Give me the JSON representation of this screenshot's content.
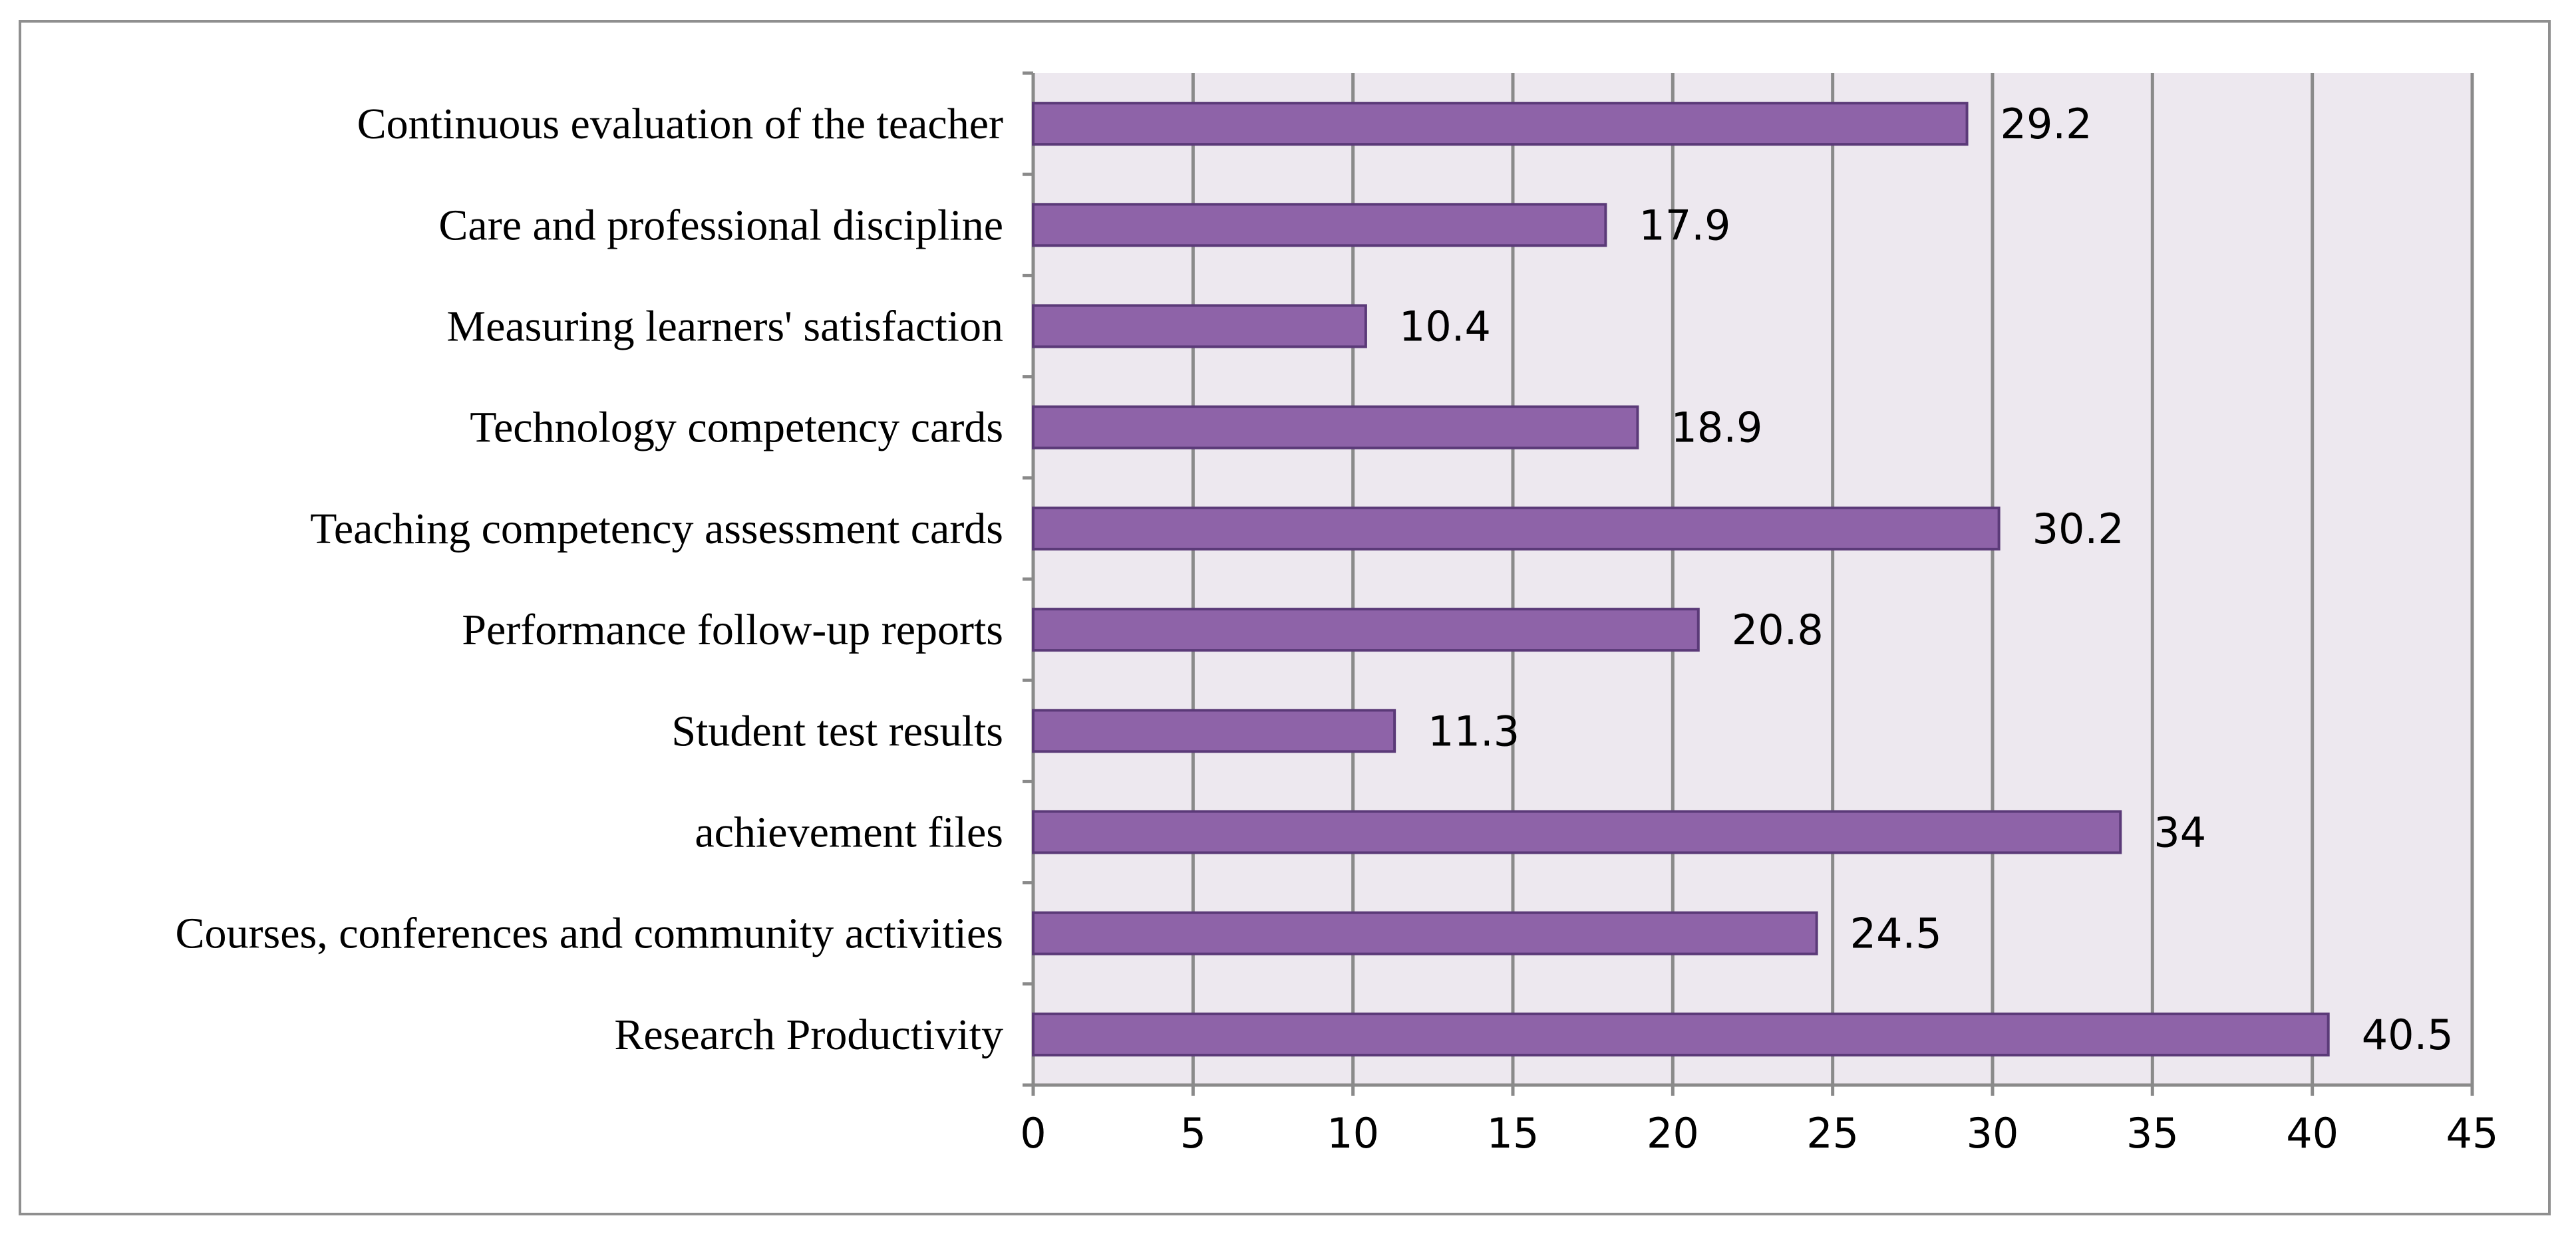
{
  "chart_data": {
    "type": "bar",
    "orientation": "horizontal",
    "title": "",
    "xlabel": "",
    "ylabel": "",
    "categories": [
      "Continuous evaluation of the teacher",
      "Care and professional discipline",
      "Measuring learners' satisfaction",
      "Technology competency cards",
      "Teaching competency assessment cards",
      "Performance follow-up reports",
      "Student test results",
      "achievement files",
      "Courses, conferences and community activities",
      "Research Productivity"
    ],
    "values": [
      29.2,
      17.9,
      10.4,
      18.9,
      30.2,
      20.8,
      11.3,
      34,
      24.5,
      40.5
    ],
    "value_labels": [
      "29.2",
      "17.9",
      "10.4",
      "18.9",
      "30.2",
      "20.8",
      "11.3",
      "34",
      "24.5",
      "40.5"
    ],
    "xlim": [
      0,
      45
    ],
    "xticks": [
      0,
      5,
      10,
      15,
      20,
      25,
      30,
      35,
      40,
      45
    ],
    "xtick_labels": [
      "0",
      "5",
      "10",
      "15",
      "20",
      "25",
      "30",
      "35",
      "40",
      "45"
    ],
    "grid": "vertical",
    "legend": "none",
    "colors": {
      "bar_fill": "#8e63a8",
      "bar_stroke": "#5b3a78",
      "plot_background": "#ede8ef",
      "gridline": "#8a8a8a",
      "axis": "#8a8a8a",
      "frame": "#8f8f8f"
    }
  }
}
